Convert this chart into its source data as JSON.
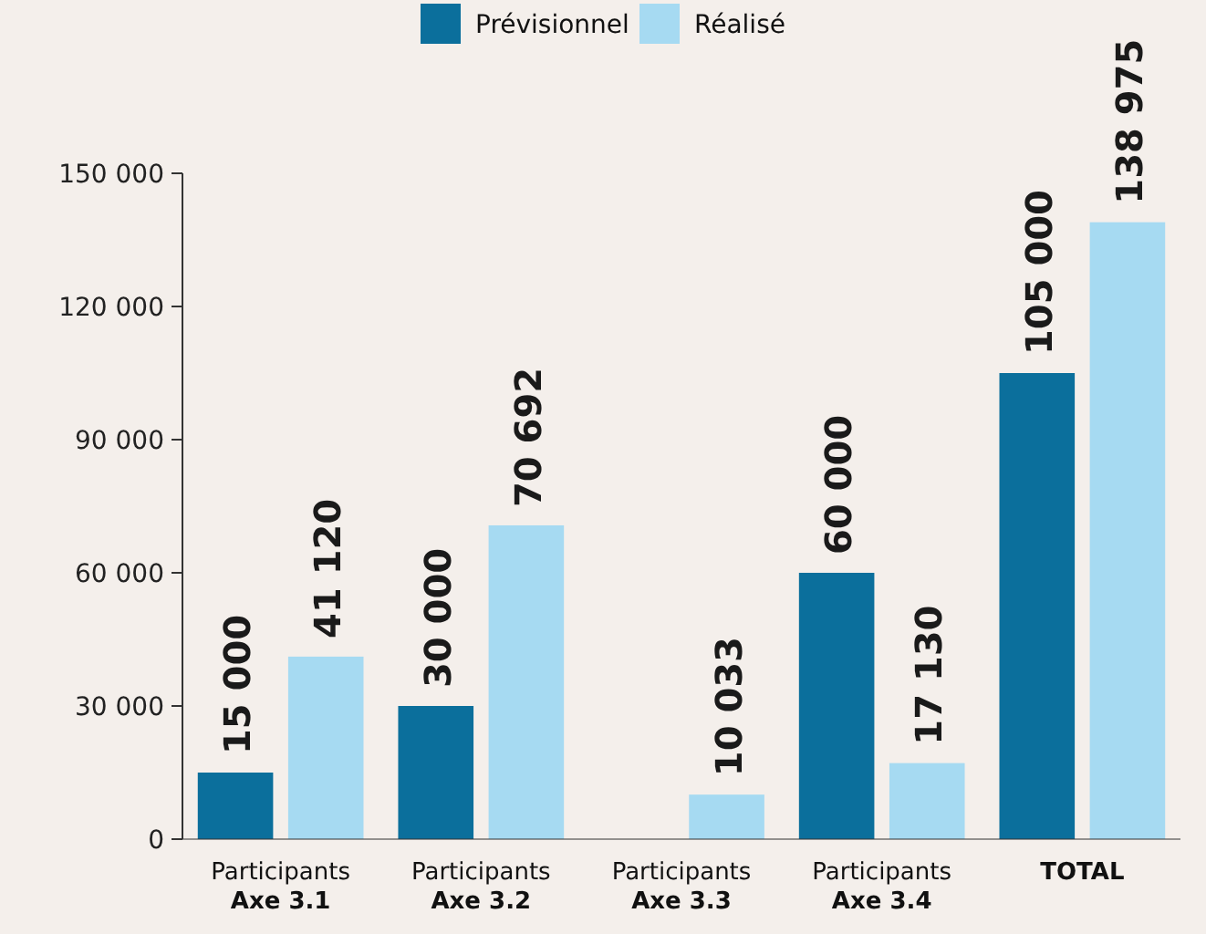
{
  "chart_data": {
    "type": "bar",
    "categories": [
      "Participants\nAxe 3.1",
      "Participants\nAxe 3.2",
      "Participants\nAxe 3.3",
      "Participants\nAxe 3.4",
      "TOTAL"
    ],
    "series": [
      {
        "name": "Prévisionnel",
        "color": "#0b6f9c",
        "values": [
          15000,
          30000,
          null,
          60000,
          105000
        ],
        "value_labels": [
          "15 000",
          "30 000",
          null,
          "60 000",
          "105 000"
        ]
      },
      {
        "name": "Réalisé",
        "color": "#a6daf2",
        "values": [
          41120,
          70692,
          10033,
          17130,
          138975
        ],
        "value_labels": [
          "41 120",
          "70 692",
          "10 033",
          "17 130",
          "138 975"
        ]
      }
    ],
    "ylim": [
      0,
      150000
    ],
    "yticks": [
      {
        "value": 0,
        "label": "0"
      },
      {
        "value": 30000,
        "label": "30 000"
      },
      {
        "value": 60000,
        "label": "60 000"
      },
      {
        "value": 90000,
        "label": "90 000"
      },
      {
        "value": 120000,
        "label": "120 000"
      },
      {
        "value": 150000,
        "label": "150 000"
      }
    ],
    "grid": false,
    "legend": "top"
  }
}
